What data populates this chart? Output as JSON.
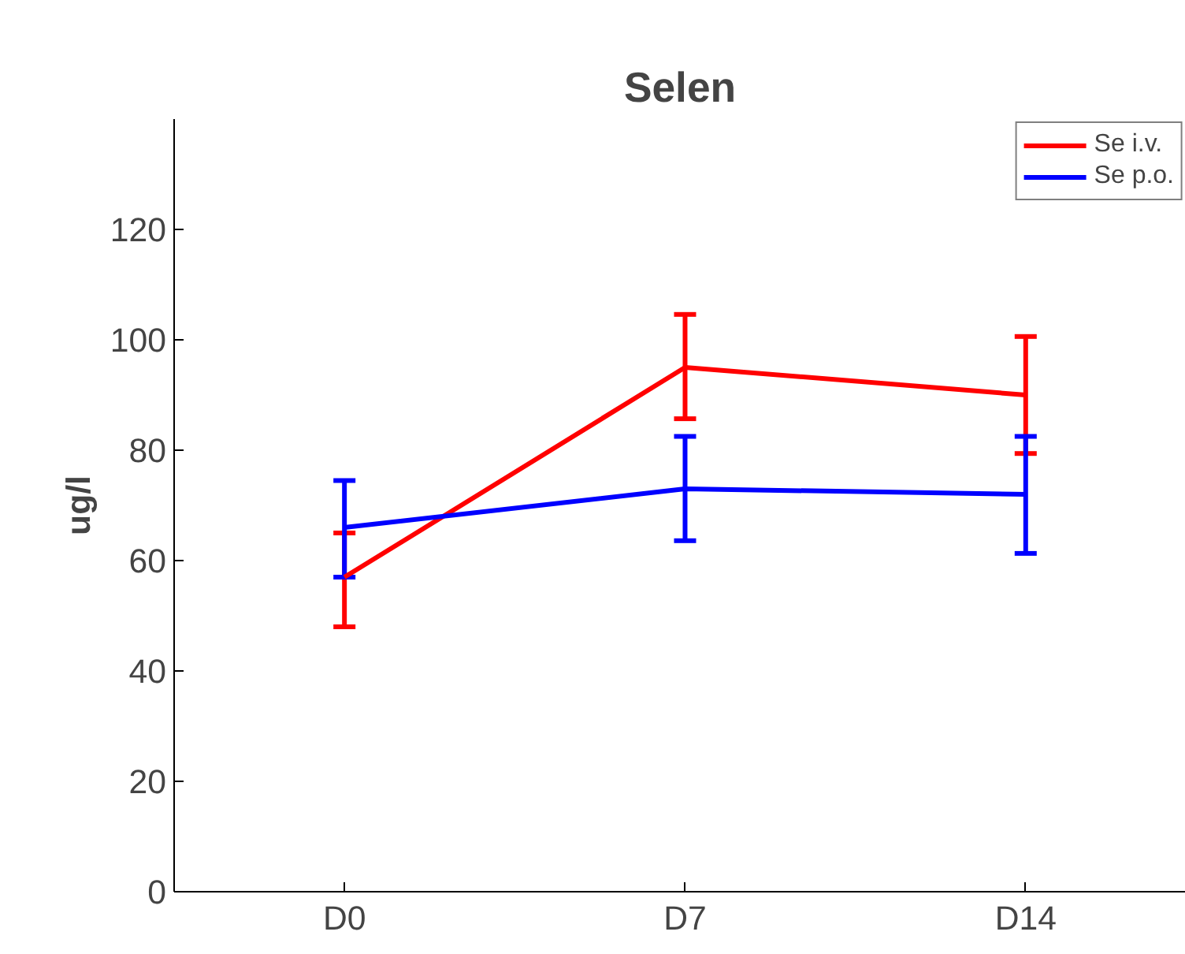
{
  "chart_data": {
    "type": "line",
    "title": "Selen",
    "ylabel": "ug/l",
    "categories": [
      "D0",
      "D7",
      "D14"
    ],
    "series": [
      {
        "name": "Se i.v.",
        "color": "#ff0000",
        "values": [
          57,
          95,
          90
        ],
        "errors": [
          [
            48,
            65
          ],
          [
            85.7,
            104.6
          ],
          [
            79.4,
            100.6
          ]
        ]
      },
      {
        "name": "Se p.o.",
        "color": "#0000ff",
        "values": [
          66,
          73,
          72
        ],
        "errors": [
          [
            57,
            74.5
          ],
          [
            63.6,
            82.5
          ],
          [
            61.3,
            82.5
          ]
        ]
      }
    ],
    "ylim": [
      0,
      140
    ],
    "yticks": [
      0,
      20,
      40,
      60,
      80,
      100,
      120
    ],
    "grid": false,
    "legend": "top right",
    "marker": "none",
    "line_style": "solid"
  }
}
